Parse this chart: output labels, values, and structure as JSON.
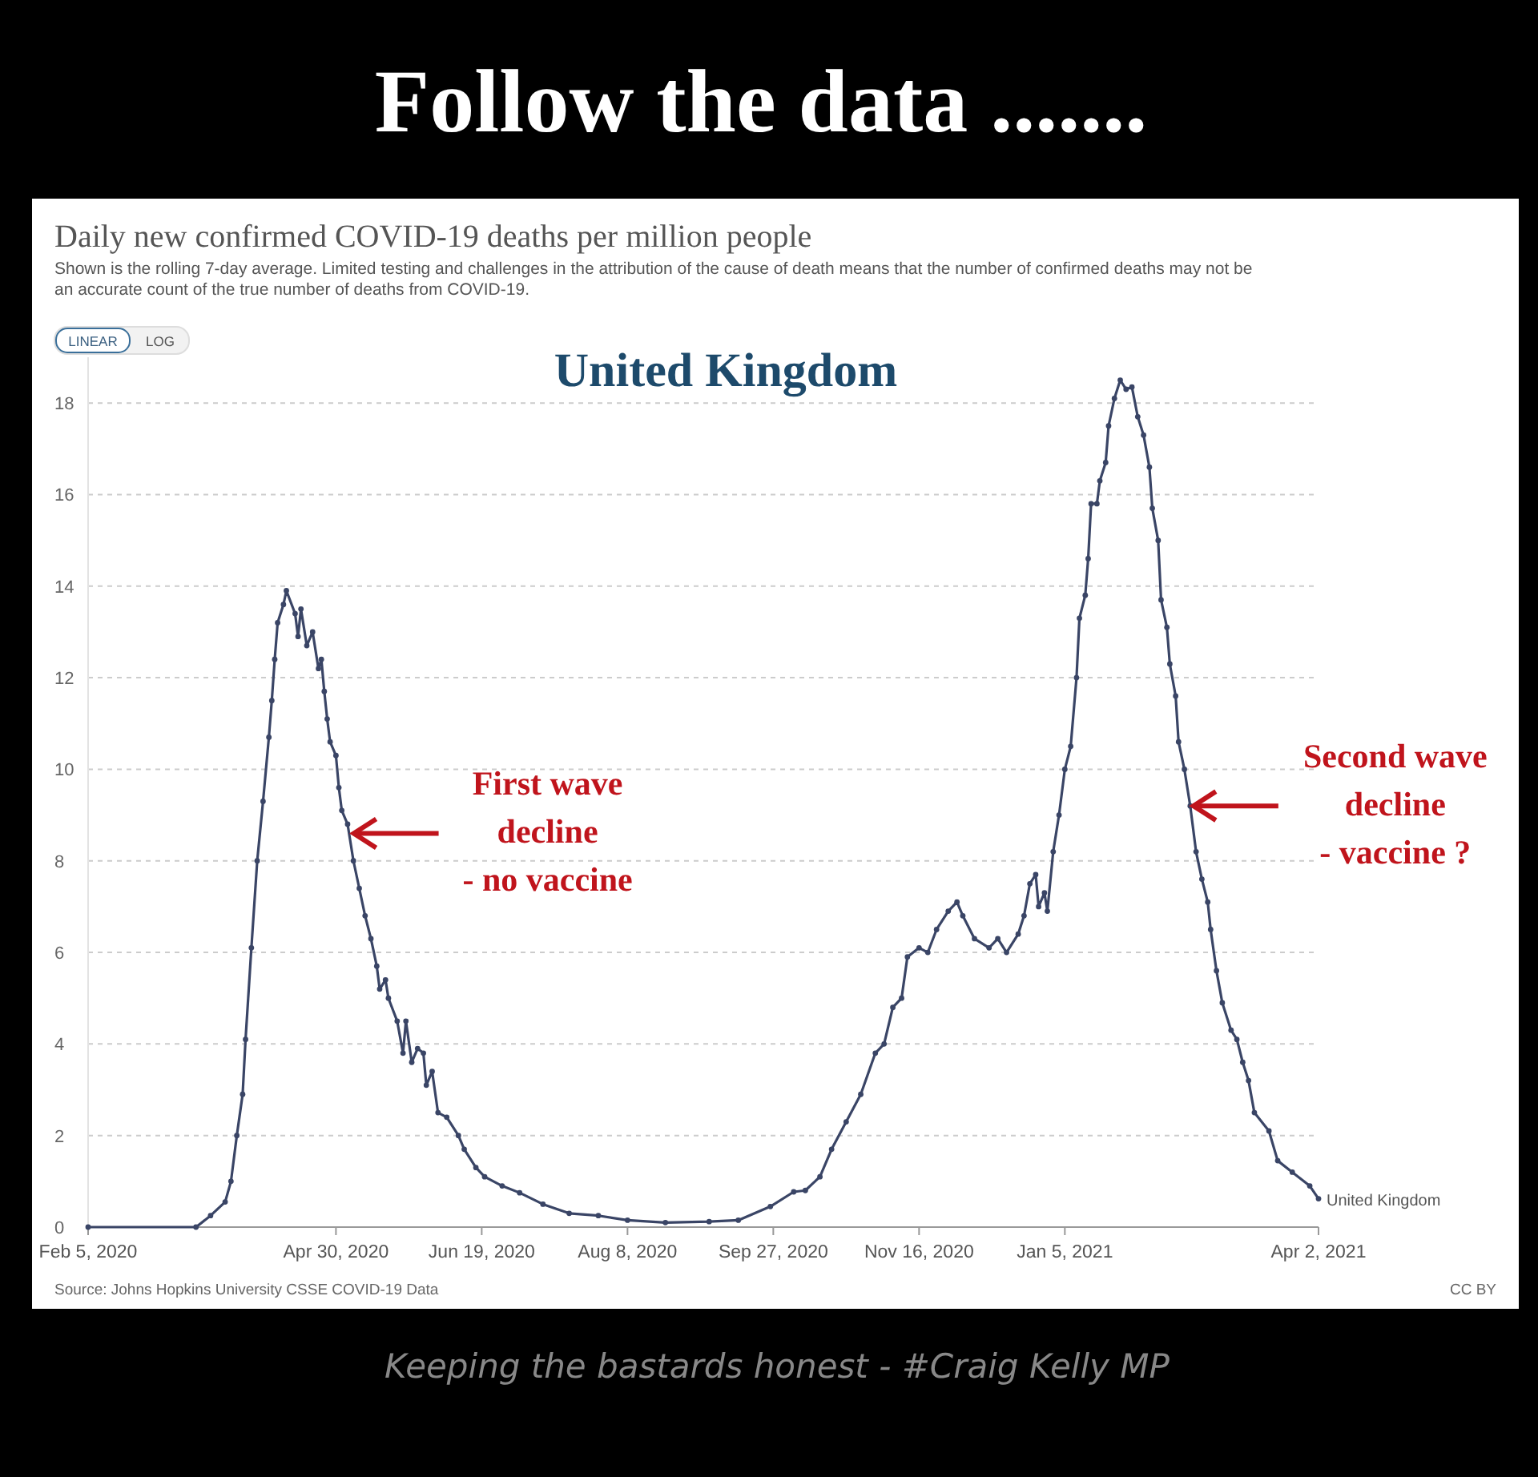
{
  "chart_data": {
    "type": "line",
    "title": "Follow the data .......",
    "subtitle": "Daily new confirmed COVID-19 deaths per million people",
    "annotations": [
      "Shown is the rolling 7-day average. Limited testing and challenges in the attribution of the cause of death means that the number of confirmed deaths may not be an accurate count of the true number of deaths from COVID-19.",
      "United Kingdom",
      "LINEAR",
      "LOG",
      {
        "text": "First wave\ndecline\n- no vaccine",
        "x": "2020-05-05",
        "y": 8.6
      },
      {
        "text": "Second wave\ndecline\n- vaccine ?",
        "x": "2021-02-17",
        "y": 9.2
      },
      "Source: Johns Hopkins University CSSE COVID-19 Data",
      "CC BY",
      "Keeping the bastards honest - #Craig Kelly MP"
    ],
    "x": [
      "2020-02-05",
      "2020-03-13",
      "2020-03-18",
      "2020-03-23",
      "2020-03-25",
      "2020-03-27",
      "2020-03-29",
      "2020-03-30",
      "2020-04-01",
      "2020-04-03",
      "2020-04-05",
      "2020-04-07",
      "2020-04-08",
      "2020-04-09",
      "2020-04-10",
      "2020-04-12",
      "2020-04-13",
      "2020-04-16",
      "2020-04-17",
      "2020-04-18",
      "2020-04-20",
      "2020-04-22",
      "2020-04-24",
      "2020-04-25",
      "2020-04-26",
      "2020-04-27",
      "2020-04-28",
      "2020-04-30",
      "2020-05-01",
      "2020-05-02",
      "2020-05-04",
      "2020-05-06",
      "2020-05-08",
      "2020-05-10",
      "2020-05-12",
      "2020-05-14",
      "2020-05-15",
      "2020-05-17",
      "2020-05-18",
      "2020-05-21",
      "2020-05-23",
      "2020-05-24",
      "2020-05-26",
      "2020-05-28",
      "2020-05-30",
      "2020-05-31",
      "2020-06-02",
      "2020-06-04",
      "2020-06-07",
      "2020-06-11",
      "2020-06-13",
      "2020-06-17",
      "2020-06-20",
      "2020-06-26",
      "2020-07-02",
      "2020-07-10",
      "2020-07-19",
      "2020-07-29",
      "2020-08-08",
      "2020-08-21",
      "2020-09-05",
      "2020-09-15",
      "2020-09-26",
      "2020-10-04",
      "2020-10-08",
      "2020-10-13",
      "2020-10-17",
      "2020-10-22",
      "2020-10-27",
      "2020-11-01",
      "2020-11-04",
      "2020-11-07",
      "2020-11-10",
      "2020-11-12",
      "2020-11-16",
      "2020-11-19",
      "2020-11-22",
      "2020-11-26",
      "2020-11-29",
      "2020-12-01",
      "2020-12-05",
      "2020-12-10",
      "2020-12-13",
      "2020-12-16",
      "2020-12-20",
      "2020-12-22",
      "2020-12-24",
      "2020-12-26",
      "2020-12-27",
      "2020-12-29",
      "2020-12-30",
      "2021-01-01",
      "2021-01-03",
      "2021-01-05",
      "2021-01-07",
      "2021-01-09",
      "2021-01-10",
      "2021-01-12",
      "2021-01-13",
      "2021-01-14",
      "2021-01-16",
      "2021-01-17",
      "2021-01-19",
      "2021-01-20",
      "2021-01-22",
      "2021-01-24",
      "2021-01-26",
      "2021-01-28",
      "2021-01-30",
      "2021-02-01",
      "2021-02-03",
      "2021-02-04",
      "2021-02-06",
      "2021-02-07",
      "2021-02-09",
      "2021-02-10",
      "2021-02-12",
      "2021-02-13",
      "2021-02-15",
      "2021-02-17",
      "2021-02-19",
      "2021-02-21",
      "2021-02-23",
      "2021-02-24",
      "2021-02-26",
      "2021-02-28",
      "2021-03-03",
      "2021-03-05",
      "2021-03-07",
      "2021-03-09",
      "2021-03-11",
      "2021-03-16",
      "2021-03-19",
      "2021-03-24",
      "2021-03-30",
      "2021-04-02"
    ],
    "series": [
      {
        "name": "United Kingdom",
        "color": "#3a4566",
        "values": [
          0,
          0,
          0.25,
          0.55,
          1.0,
          2.0,
          2.9,
          4.1,
          6.1,
          8.0,
          9.3,
          10.7,
          11.5,
          12.4,
          13.2,
          13.6,
          13.9,
          13.4,
          12.9,
          13.5,
          12.7,
          13.0,
          12.2,
          12.4,
          11.7,
          11.1,
          10.6,
          10.3,
          9.6,
          9.1,
          8.8,
          8.0,
          7.4,
          6.8,
          6.3,
          5.7,
          5.2,
          5.4,
          5.0,
          4.5,
          3.8,
          4.5,
          3.6,
          3.9,
          3.8,
          3.1,
          3.4,
          2.5,
          2.4,
          2.0,
          1.7,
          1.3,
          1.1,
          0.9,
          0.75,
          0.5,
          0.3,
          0.25,
          0.15,
          0.1,
          0.12,
          0.15,
          0.45,
          0.77,
          0.8,
          1.1,
          1.7,
          2.3,
          2.9,
          3.8,
          4.0,
          4.8,
          5.0,
          5.9,
          6.1,
          6.0,
          6.5,
          6.9,
          7.1,
          6.8,
          6.3,
          6.1,
          6.3,
          6.0,
          6.4,
          6.8,
          7.5,
          7.7,
          7.0,
          7.3,
          6.9,
          8.2,
          9.0,
          10.0,
          10.5,
          12.0,
          13.3,
          13.8,
          14.6,
          15.8,
          15.8,
          16.3,
          16.7,
          17.5,
          18.1,
          18.5,
          18.3,
          18.35,
          17.7,
          17.3,
          16.6,
          15.7,
          15.0,
          13.7,
          13.1,
          12.3,
          11.6,
          10.6,
          10.0,
          9.2,
          8.2,
          7.6,
          7.1,
          6.5,
          5.6,
          4.9,
          4.3,
          4.1,
          3.6,
          3.2,
          2.5,
          2.1,
          1.45,
          1.2,
          0.9,
          0.62
        ]
      }
    ],
    "xlim": [
      "2020-02-05",
      "2021-04-02"
    ],
    "xticks": [
      {
        "value": "2020-02-05",
        "label": "Feb 5, 2020"
      },
      {
        "value": "2020-04-30",
        "label": "Apr 30, 2020"
      },
      {
        "value": "2020-06-19",
        "label": "Jun 19, 2020"
      },
      {
        "value": "2020-08-08",
        "label": "Aug 8, 2020"
      },
      {
        "value": "2020-09-27",
        "label": "Sep 27, 2020"
      },
      {
        "value": "2020-11-16",
        "label": "Nov 16, 2020"
      },
      {
        "value": "2021-01-05",
        "label": "Jan 5, 2021"
      },
      {
        "value": "2021-04-02",
        "label": "Apr 2, 2021"
      }
    ],
    "ylim": [
      0,
      19
    ],
    "yticks": [
      0,
      2,
      4,
      6,
      8,
      10,
      12,
      14,
      16,
      18
    ],
    "grid": "y",
    "marker": "circle",
    "line_style": "solid"
  }
}
